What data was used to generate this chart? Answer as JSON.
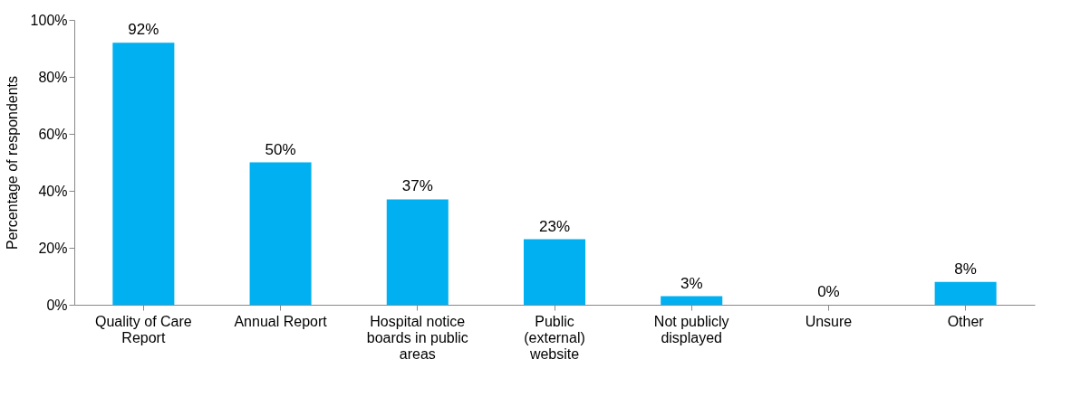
{
  "chart_data": {
    "type": "bar",
    "ylabel": "Percentage of respondents",
    "categories": [
      "Quality of Care Report",
      "Annual Report",
      "Hospital notice boards in public areas",
      "Public (external) website",
      "Not publicly displayed",
      "Unsure",
      "Other"
    ],
    "values": [
      92,
      50,
      37,
      23,
      3,
      0,
      8
    ],
    "value_labels": [
      "92%",
      "50%",
      "37%",
      "23%",
      "3%",
      "0%",
      "8%"
    ],
    "color": "#00b0f0",
    "ylim": [
      0,
      100
    ],
    "yticks": [
      {
        "value": 0,
        "label": "0%"
      },
      {
        "value": 20,
        "label": "20%"
      },
      {
        "value": 40,
        "label": "40%"
      },
      {
        "value": 60,
        "label": "60%"
      },
      {
        "value": 80,
        "label": "80%"
      },
      {
        "value": 100,
        "label": "100%"
      }
    ],
    "grid": false
  }
}
